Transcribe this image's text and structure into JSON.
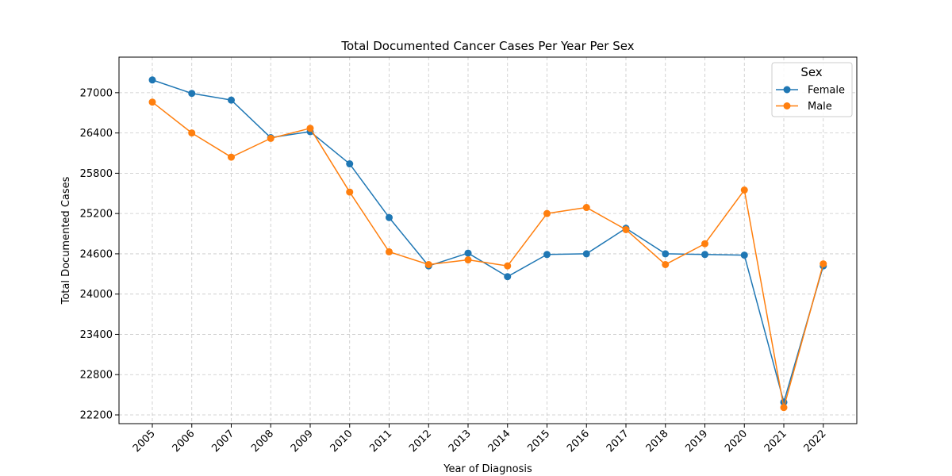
{
  "chart_data": {
    "type": "line",
    "title": "Total Documented Cancer Cases Per Year Per Sex",
    "xlabel": "Year of Diagnosis",
    "ylabel": "Total Documented Cases",
    "x": [
      "2005",
      "2006",
      "2007",
      "2008",
      "2009",
      "2010",
      "2011",
      "2012",
      "2013",
      "2014",
      "2015",
      "2016",
      "2017",
      "2018",
      "2019",
      "2020",
      "2021",
      "2022"
    ],
    "yticks": [
      22200,
      22800,
      23400,
      24000,
      24600,
      25200,
      25800,
      26400,
      27000
    ],
    "ylim": [
      22070,
      27530
    ],
    "grid": true,
    "legend": {
      "title": "Sex",
      "placement": "top-right"
    },
    "series": [
      {
        "name": "Female",
        "color": "#1f77b4",
        "values": [
          27190,
          26990,
          26890,
          26330,
          26420,
          25940,
          25140,
          24420,
          24610,
          24260,
          24590,
          24600,
          24980,
          24600,
          24590,
          24580,
          22390,
          24420
        ]
      },
      {
        "name": "Male",
        "color": "#ff7f0e",
        "values": [
          26860,
          26400,
          26040,
          26320,
          26470,
          25520,
          24630,
          24440,
          24510,
          24420,
          25200,
          25290,
          24960,
          24440,
          24750,
          25550,
          22310,
          24450
        ]
      }
    ]
  }
}
